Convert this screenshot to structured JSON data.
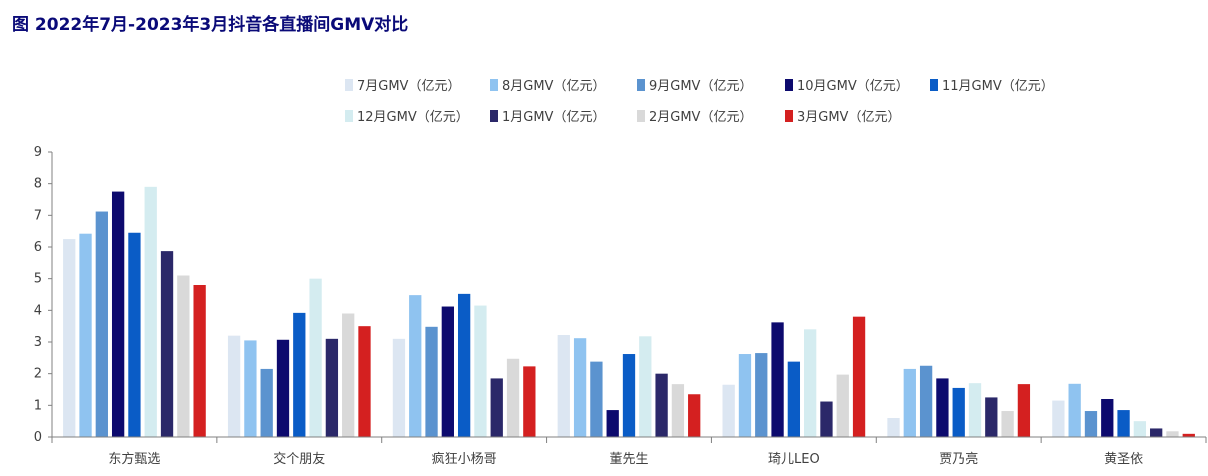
{
  "title": "图  2022年7月-2023年3月抖音各直播间GMV对比",
  "chart_data": {
    "type": "bar",
    "categories": [
      "东方甄选",
      "交个朋友",
      "疯狂小杨哥",
      "董先生",
      "琦儿LEO",
      "贾乃亮",
      "黄圣依"
    ],
    "series": [
      {
        "name": "7月GMV（亿元）",
        "color": "#dce6f2",
        "values": [
          6.25,
          3.2,
          3.1,
          3.22,
          1.65,
          0.6,
          1.15
        ]
      },
      {
        "name": "8月GMV（亿元）",
        "color": "#8fc3f0",
        "values": [
          6.42,
          3.05,
          4.48,
          3.12,
          2.62,
          2.15,
          1.68
        ]
      },
      {
        "name": "9月GMV（亿元）",
        "color": "#5b93cf",
        "values": [
          7.12,
          2.15,
          3.48,
          2.38,
          2.65,
          2.25,
          0.82
        ]
      },
      {
        "name": "10月GMV（亿元）",
        "color": "#0d0a6e",
        "values": [
          7.75,
          3.07,
          4.12,
          0.85,
          3.62,
          1.85,
          1.2
        ]
      },
      {
        "name": "11月GMV（亿元）",
        "color": "#0a5cc6",
        "values": [
          6.45,
          3.92,
          4.52,
          2.62,
          2.38,
          1.55,
          0.85
        ]
      },
      {
        "name": "12月GMV（亿元）",
        "color": "#d4ecf0",
        "values": [
          7.9,
          5.0,
          4.15,
          3.18,
          3.4,
          1.7,
          0.5
        ]
      },
      {
        "name": "1月GMV（亿元）",
        "color": "#2b2869",
        "values": [
          5.87,
          3.1,
          1.85,
          2.0,
          1.12,
          1.25,
          0.27
        ]
      },
      {
        "name": "2月GMV（亿元）",
        "color": "#d9d9d9",
        "values": [
          5.1,
          3.9,
          2.47,
          1.67,
          1.97,
          0.82,
          0.18
        ]
      },
      {
        "name": "3月GMV（亿元）",
        "color": "#d42020",
        "values": [
          4.8,
          3.5,
          2.23,
          1.35,
          3.8,
          1.67,
          0.1
        ]
      }
    ],
    "ylim": [
      0,
      9
    ],
    "yticks": [
      0,
      1,
      2,
      3,
      4,
      5,
      6,
      7,
      8,
      9
    ],
    "grid": false,
    "legend": "top-center"
  }
}
